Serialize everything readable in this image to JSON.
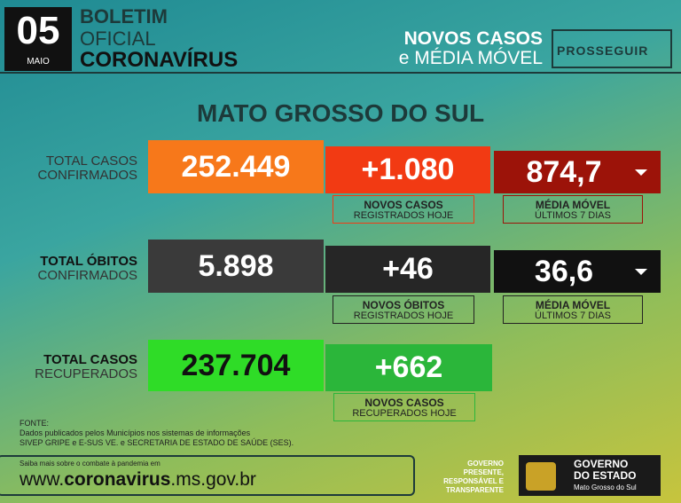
{
  "header": {
    "day": "05",
    "month": "MAIO",
    "title": [
      "BOLETIM",
      "OFICIAL",
      "CORONAVÍRUS"
    ],
    "section": [
      "NOVOS CASOS",
      "e MÉDIA MÓVEL"
    ],
    "logo": "PROSSEGUIR"
  },
  "region": "MATO GROSSO DO SUL",
  "rows": [
    {
      "label": [
        "TOTAL CASOS",
        "CONFIRMADOS"
      ],
      "total": "252.449",
      "new": "+1.080",
      "new_label": [
        "NOVOS CASOS",
        "REGISTRADOS HOJE"
      ],
      "avg": "874,7",
      "avg_label": [
        "MÉDIA MÓVEL",
        "ÚLTIMOS 7 DIAS"
      ]
    },
    {
      "label": [
        "TOTAL ÓBITOS",
        "CONFIRMADOS"
      ],
      "total": "5.898",
      "new": "+46",
      "new_label": [
        "NOVOS ÓBITOS",
        "REGISTRADOS HOJE"
      ],
      "avg": "36,6",
      "avg_label": [
        "MÉDIA MÓVEL",
        "ÚLTIMOS 7 DIAS"
      ]
    },
    {
      "label": [
        "TOTAL CASOS",
        "RECUPERADOS"
      ],
      "total": "237.704",
      "new": "+662",
      "new_label": [
        "NOVOS CASOS",
        "RECUPERADOS HOJE"
      ]
    }
  ],
  "footer": {
    "source": [
      "FONTE:",
      "Dados publicados pelos Municípios nos sistemas de informações",
      "SIVEP GRIPE e E-SUS VE. e SECRETARIA DE ESTADO DE SAÚDE (SES)."
    ],
    "site_note": "Saiba mais sobre o combate à pandemia em",
    "url": [
      "www.",
      "coronavirus",
      ".ms.gov.br"
    ],
    "slogan": [
      "GOVERNO",
      "PRESENTE,",
      "RESPONSÁVEL E",
      "TRANSPARENTE"
    ],
    "government": [
      "GOVERNO",
      "DO ESTADO",
      "Mato Grosso do Sul"
    ]
  }
}
